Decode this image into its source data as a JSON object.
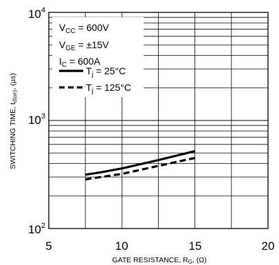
{
  "chart_data": {
    "type": "line",
    "xlabel_main": "GATE RESISTANCE, R",
    "xlabel_sub": "G",
    "xlabel_unit": ", (Ω)",
    "ylabel_main": "SWITCHING TIME, t",
    "ylabel_sub": "d(on)",
    "ylabel_unit": ", (µs)",
    "xlim": [
      5,
      20
    ],
    "ylim": [
      100,
      10000
    ],
    "y_scale": "log",
    "x_ticks": [
      "5",
      "10",
      "15",
      "20"
    ],
    "y_ticks": [
      {
        "base": "10",
        "exp": "4",
        "value": 10000
      },
      {
        "base": "10",
        "exp": "3",
        "value": 1000
      },
      {
        "base": "10",
        "exp": "2",
        "value": 100
      }
    ],
    "grid": true,
    "legend_placement": "top-left",
    "conditions": [
      {
        "pre": "V",
        "sub": "CC",
        "post": " = 600V"
      },
      {
        "pre": "V",
        "sub": "GE",
        "post": " = ±15V"
      },
      {
        "pre": "I",
        "sub": "C",
        "post": " = 600A"
      }
    ],
    "series": [
      {
        "name_pre": "T",
        "name_sub": "j",
        "name_post": " = 25°C",
        "style": "solid",
        "x": [
          7.5,
          8.5,
          10,
          12.5,
          15
        ],
        "values": [
          315,
          330,
          360,
          430,
          520
        ]
      },
      {
        "name_pre": "T",
        "name_sub": "j",
        "name_post": " = 125°C",
        "style": "dashed",
        "x": [
          7.5,
          10,
          12.5,
          15
        ],
        "values": [
          285,
          320,
          380,
          450
        ]
      }
    ]
  }
}
